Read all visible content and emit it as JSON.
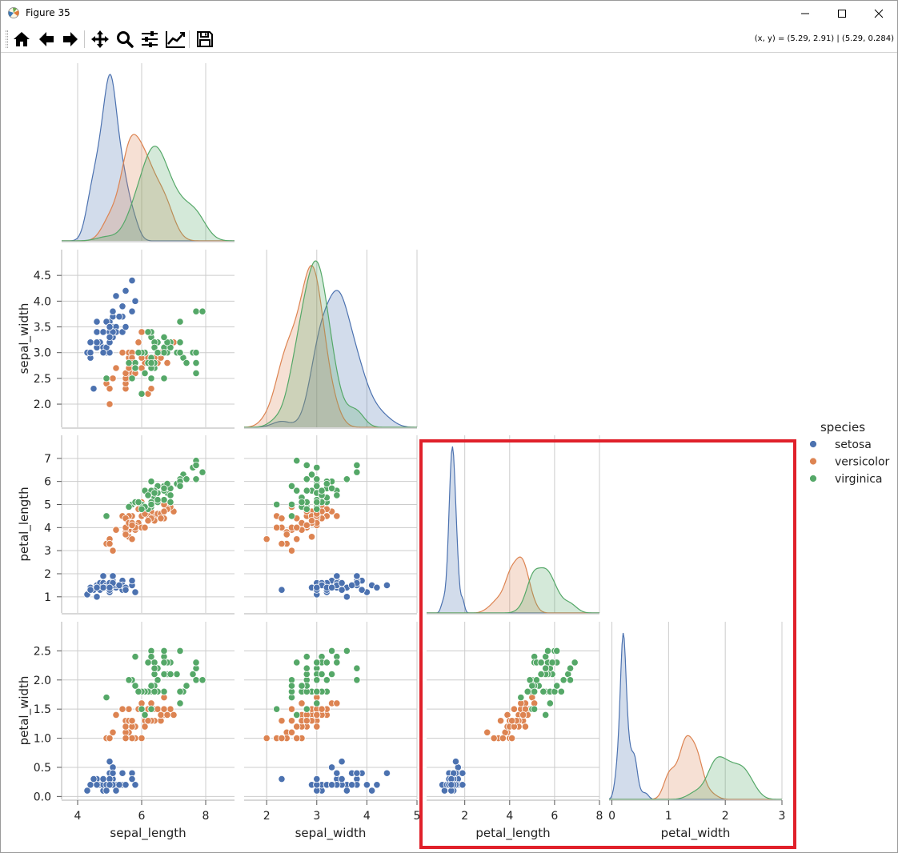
{
  "window": {
    "title": "Figure 35",
    "app_icon": "matplotlib-icon",
    "controls": {
      "minimize": "minimize-icon",
      "maximize": "maximize-icon",
      "close": "close-icon"
    }
  },
  "toolbar": {
    "buttons": [
      {
        "name": "home-button",
        "icon": "home-icon"
      },
      {
        "name": "back-button",
        "icon": "arrow-left-icon"
      },
      {
        "name": "forward-button",
        "icon": "arrow-right-icon"
      },
      {
        "name": "pan-button",
        "icon": "move-icon"
      },
      {
        "name": "zoom-button",
        "icon": "magnifier-icon"
      },
      {
        "name": "subplots-button",
        "icon": "sliders-icon"
      },
      {
        "name": "edit-axes-button",
        "icon": "line-chart-icon"
      },
      {
        "name": "save-button",
        "icon": "floppy-disk-icon"
      }
    ],
    "coordinates": "(x, y) = (5.29, 2.91) | (5.29, 0.284)"
  },
  "chart_data": {
    "type": "scatter",
    "title": "",
    "variables": [
      "sepal_length",
      "sepal_width",
      "petal_length",
      "petal_width"
    ],
    "axis_ranges": {
      "sepal_length": [
        3.5,
        8.9
      ],
      "sepal_width": [
        1.55,
        5.0
      ],
      "petal_length": [
        0.3,
        8.0
      ],
      "petal_width": [
        -0.05,
        3.0
      ]
    },
    "ticks": {
      "sepal_length": [
        4,
        6,
        8
      ],
      "sepal_width": [
        2,
        3,
        4,
        5
      ],
      "petal_length": [
        2,
        4,
        6,
        8
      ],
      "petal_width": [
        0,
        1,
        2,
        3
      ]
    },
    "y_ticks": {
      "sepal_width": [
        "2.0",
        "2.5",
        "3.0",
        "3.5",
        "4.0",
        "4.5"
      ],
      "petal_length": [
        "1",
        "2",
        "3",
        "4",
        "5",
        "6",
        "7"
      ],
      "petal_width": [
        "0.0",
        "0.5",
        "1.0",
        "1.5",
        "2.0",
        "2.5"
      ]
    },
    "grid": true,
    "corner": true,
    "diag_kind": "kde",
    "legend": {
      "title": "species",
      "placement": "right"
    },
    "series": [
      {
        "name": "setosa",
        "color": "#4c72b0",
        "sepal_length": [
          5.1,
          4.9,
          4.7,
          4.6,
          5.0,
          5.4,
          4.6,
          5.0,
          4.4,
          4.9,
          5.4,
          4.8,
          4.8,
          4.3,
          5.8,
          5.7,
          5.4,
          5.1,
          5.7,
          5.1,
          5.4,
          5.1,
          4.6,
          5.1,
          4.8,
          5.0,
          5.0,
          5.2,
          5.2,
          4.7,
          4.8,
          5.4,
          5.2,
          5.5,
          4.9,
          5.0,
          5.5,
          4.9,
          4.4,
          5.1,
          5.0,
          4.5,
          4.4,
          5.0,
          5.1,
          4.8,
          5.1,
          4.6,
          5.3,
          5.0
        ],
        "sepal_width": [
          3.5,
          3.0,
          3.2,
          3.1,
          3.6,
          3.9,
          3.4,
          3.4,
          2.9,
          3.1,
          3.7,
          3.4,
          3.0,
          3.0,
          4.0,
          4.4,
          3.9,
          3.5,
          3.8,
          3.8,
          3.4,
          3.7,
          3.6,
          3.3,
          3.4,
          3.0,
          3.4,
          3.5,
          3.4,
          3.2,
          3.1,
          3.4,
          4.1,
          4.2,
          3.1,
          3.2,
          3.5,
          3.6,
          3.0,
          3.4,
          3.5,
          2.3,
          3.2,
          3.5,
          3.8,
          3.0,
          3.8,
          3.2,
          3.7,
          3.3
        ],
        "petal_length": [
          1.4,
          1.4,
          1.3,
          1.5,
          1.4,
          1.7,
          1.4,
          1.5,
          1.4,
          1.5,
          1.5,
          1.6,
          1.4,
          1.1,
          1.2,
          1.5,
          1.3,
          1.4,
          1.7,
          1.5,
          1.7,
          1.5,
          1.0,
          1.7,
          1.9,
          1.6,
          1.6,
          1.5,
          1.4,
          1.6,
          1.6,
          1.5,
          1.5,
          1.4,
          1.5,
          1.2,
          1.3,
          1.4,
          1.3,
          1.5,
          1.3,
          1.3,
          1.3,
          1.6,
          1.9,
          1.4,
          1.6,
          1.4,
          1.5,
          1.4
        ],
        "petal_width": [
          0.2,
          0.2,
          0.2,
          0.2,
          0.2,
          0.4,
          0.3,
          0.2,
          0.2,
          0.1,
          0.2,
          0.2,
          0.1,
          0.1,
          0.2,
          0.4,
          0.4,
          0.3,
          0.3,
          0.3,
          0.2,
          0.4,
          0.2,
          0.5,
          0.2,
          0.2,
          0.4,
          0.2,
          0.2,
          0.2,
          0.2,
          0.4,
          0.1,
          0.2,
          0.2,
          0.2,
          0.2,
          0.1,
          0.2,
          0.2,
          0.3,
          0.3,
          0.2,
          0.6,
          0.4,
          0.3,
          0.2,
          0.2,
          0.2,
          0.2
        ]
      },
      {
        "name": "versicolor",
        "color": "#dd8452",
        "sepal_length": [
          7.0,
          6.4,
          6.9,
          5.5,
          6.5,
          5.7,
          6.3,
          4.9,
          6.6,
          5.2,
          5.0,
          5.9,
          6.0,
          6.1,
          5.6,
          6.7,
          5.6,
          5.8,
          6.2,
          5.6,
          5.9,
          6.1,
          6.3,
          6.1,
          6.4,
          6.6,
          6.8,
          6.7,
          6.0,
          5.7,
          5.5,
          5.5,
          5.8,
          6.0,
          5.4,
          6.0,
          6.7,
          6.3,
          5.6,
          5.5,
          5.5,
          6.1,
          5.8,
          5.0,
          5.6,
          5.7,
          5.7,
          6.2,
          5.1,
          5.7
        ],
        "sepal_width": [
          3.2,
          3.2,
          3.1,
          2.3,
          2.8,
          2.8,
          3.3,
          2.4,
          2.9,
          2.7,
          2.0,
          3.0,
          2.2,
          2.9,
          2.9,
          3.1,
          3.0,
          2.7,
          2.2,
          2.5,
          3.2,
          2.8,
          2.5,
          2.8,
          2.9,
          3.0,
          2.8,
          3.0,
          2.9,
          2.6,
          2.4,
          2.4,
          2.7,
          2.7,
          3.0,
          3.4,
          3.1,
          2.3,
          3.0,
          2.5,
          2.6,
          3.0,
          2.6,
          2.3,
          2.7,
          3.0,
          2.9,
          2.9,
          2.5,
          2.8
        ],
        "petal_length": [
          4.7,
          4.5,
          4.9,
          4.0,
          4.6,
          4.5,
          4.7,
          3.3,
          4.6,
          3.9,
          3.5,
          4.2,
          4.0,
          4.7,
          3.6,
          4.4,
          4.5,
          4.1,
          4.5,
          3.9,
          4.8,
          4.0,
          4.9,
          4.7,
          4.3,
          4.4,
          4.8,
          5.0,
          4.5,
          3.5,
          3.8,
          3.7,
          3.9,
          5.1,
          4.5,
          4.5,
          4.7,
          4.4,
          4.1,
          4.0,
          4.4,
          4.6,
          4.0,
          3.3,
          4.2,
          4.2,
          4.2,
          4.3,
          3.0,
          4.1
        ],
        "petal_width": [
          1.4,
          1.5,
          1.5,
          1.3,
          1.5,
          1.3,
          1.6,
          1.0,
          1.3,
          1.4,
          1.0,
          1.5,
          1.0,
          1.4,
          1.3,
          1.4,
          1.5,
          1.0,
          1.5,
          1.1,
          1.8,
          1.3,
          1.5,
          1.2,
          1.3,
          1.4,
          1.4,
          1.7,
          1.5,
          1.0,
          1.1,
          1.0,
          1.2,
          1.6,
          1.5,
          1.6,
          1.5,
          1.3,
          1.3,
          1.3,
          1.2,
          1.4,
          1.2,
          1.0,
          1.3,
          1.2,
          1.3,
          1.3,
          1.1,
          1.3
        ]
      },
      {
        "name": "virginica",
        "color": "#55a868",
        "sepal_length": [
          6.3,
          5.8,
          7.1,
          6.3,
          6.5,
          7.6,
          4.9,
          7.3,
          6.7,
          7.2,
          6.5,
          6.4,
          6.8,
          5.7,
          5.8,
          6.4,
          6.5,
          7.7,
          7.7,
          6.0,
          6.9,
          5.6,
          7.7,
          6.3,
          6.7,
          7.2,
          6.2,
          6.1,
          6.4,
          7.2,
          7.4,
          7.9,
          6.4,
          6.3,
          6.1,
          7.7,
          6.3,
          6.4,
          6.0,
          6.9,
          6.7,
          6.9,
          5.8,
          6.8,
          6.7,
          6.7,
          6.3,
          6.5,
          6.2,
          5.9
        ],
        "sepal_width": [
          3.3,
          2.7,
          3.0,
          2.9,
          3.0,
          3.0,
          2.5,
          2.9,
          2.5,
          3.6,
          3.2,
          2.7,
          3.0,
          2.5,
          2.8,
          3.2,
          3.0,
          3.8,
          2.6,
          2.2,
          3.2,
          2.8,
          2.8,
          2.7,
          3.3,
          3.2,
          2.8,
          3.0,
          2.8,
          3.0,
          2.8,
          3.8,
          2.8,
          2.8,
          2.6,
          3.0,
          3.4,
          3.1,
          3.0,
          3.1,
          3.1,
          3.1,
          2.7,
          3.2,
          3.3,
          3.0,
          2.5,
          3.0,
          3.4,
          3.0
        ],
        "petal_length": [
          6.0,
          5.1,
          5.9,
          5.6,
          5.8,
          6.6,
          4.5,
          6.3,
          5.8,
          6.1,
          5.1,
          5.3,
          5.5,
          5.0,
          5.1,
          5.3,
          5.5,
          6.7,
          6.9,
          5.0,
          5.7,
          4.9,
          6.7,
          4.9,
          5.7,
          6.0,
          4.8,
          4.9,
          5.6,
          5.8,
          6.1,
          6.4,
          5.6,
          5.1,
          5.6,
          6.1,
          5.6,
          5.5,
          4.8,
          5.4,
          5.6,
          5.1,
          5.1,
          5.9,
          5.7,
          5.2,
          5.0,
          5.2,
          5.4,
          5.1
        ],
        "petal_width": [
          2.5,
          1.9,
          2.1,
          1.8,
          2.2,
          2.1,
          1.7,
          1.8,
          1.8,
          2.5,
          2.0,
          1.9,
          2.1,
          2.0,
          2.4,
          2.3,
          1.8,
          2.2,
          2.3,
          1.5,
          2.3,
          2.0,
          2.0,
          1.8,
          2.1,
          1.8,
          1.8,
          1.8,
          2.1,
          1.6,
          1.9,
          2.0,
          2.2,
          1.5,
          1.4,
          2.3,
          2.4,
          1.8,
          1.8,
          2.1,
          2.4,
          2.3,
          1.9,
          2.3,
          2.5,
          2.3,
          1.9,
          2.0,
          2.3,
          1.8
        ]
      }
    ]
  }
}
